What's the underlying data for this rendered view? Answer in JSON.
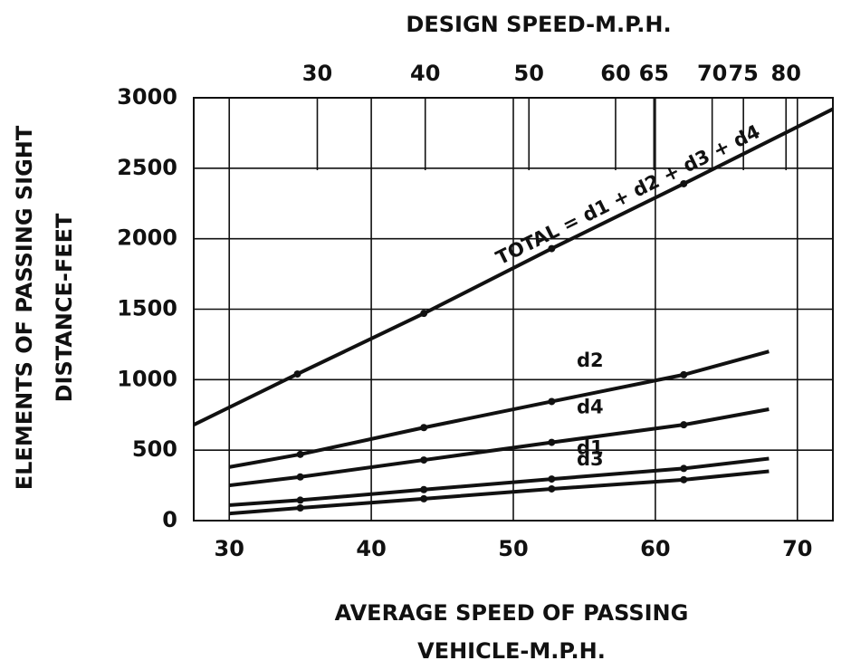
{
  "chart_data": {
    "type": "line",
    "title": "DESIGN SPEED-M.P.H.",
    "y_label": [
      "ELEMENTS OF PASSING SIGHT",
      "DISTANCE-FEET"
    ],
    "x_label": [
      "AVERAGE SPEED OF PASSING",
      "VEHICLE-M.P.H."
    ],
    "xlim": [
      27.5,
      72.5
    ],
    "xticks": [
      30,
      40,
      50,
      60,
      70
    ],
    "ylim": [
      0,
      3000
    ],
    "yticks": [
      0,
      500,
      1000,
      1500,
      2000,
      2500,
      3000
    ],
    "top_ticks": [
      {
        "value": 36.2,
        "label": "30"
      },
      {
        "value": 43.8,
        "label": "40"
      },
      {
        "value": 51.1,
        "label": "50"
      },
      {
        "value": 57.2,
        "label": "60"
      },
      {
        "value": 59.9,
        "label": "65"
      },
      {
        "value": 64.0,
        "label": "70"
      },
      {
        "value": 66.2,
        "label": "75"
      },
      {
        "value": 69.2,
        "label": "80"
      }
    ],
    "grid": true,
    "series": [
      {
        "name": "TOTAL = d1 + d2 + d3 + d4",
        "color": "#111111",
        "x": [
          27.5,
          34.8,
          43.7,
          52.7,
          62.0,
          72.5
        ],
        "values": [
          680,
          1040,
          1470,
          1930,
          2390,
          2920
        ]
      },
      {
        "name": "d2",
        "color": "#111111",
        "x": [
          30,
          35,
          43.7,
          52.7,
          62.0,
          68
        ],
        "values": [
          380,
          470,
          660,
          845,
          1035,
          1200
        ]
      },
      {
        "name": "d4",
        "color": "#111111",
        "x": [
          30,
          35,
          43.7,
          52.7,
          62.0,
          68
        ],
        "values": [
          250,
          310,
          430,
          555,
          680,
          790
        ]
      },
      {
        "name": "d1",
        "color": "#111111",
        "x": [
          30,
          35,
          43.7,
          52.7,
          62.0,
          68
        ],
        "values": [
          110,
          145,
          220,
          295,
          370,
          440
        ]
      },
      {
        "name": "d3",
        "color": "#111111",
        "x": [
          30,
          35,
          43.7,
          52.7,
          62.0,
          68
        ],
        "values": [
          50,
          90,
          155,
          225,
          290,
          350
        ]
      }
    ]
  }
}
